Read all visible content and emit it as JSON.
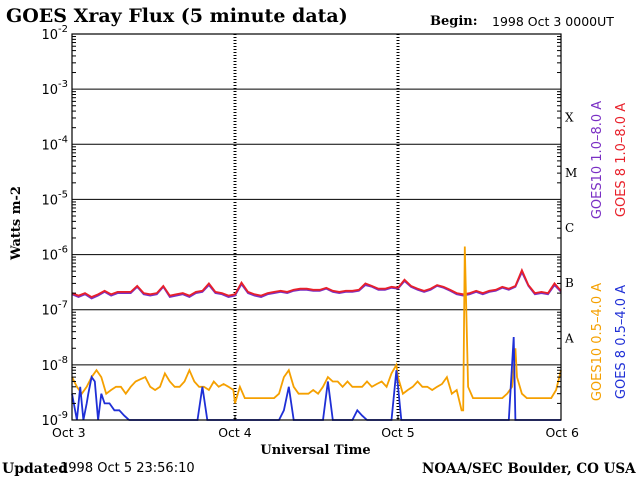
{
  "header": {
    "title": "GOES Xray Flux (5 minute data)",
    "begin_label": "Begin:",
    "begin_value": "1998 Oct 3 0000UT"
  },
  "footer": {
    "updated_label": "Updated",
    "updated_value": "1998 Oct  5 23:56:10",
    "credit": "NOAA/SEC Boulder, CO USA"
  },
  "chart_data": {
    "type": "line",
    "xlabel": "Universal Time",
    "ylabel": "Watts m-2",
    "y_scale": "log",
    "x_unit": "days since Oct 3 00:00 UT",
    "xlim": [
      0,
      3
    ],
    "ylim": [
      1e-09,
      0.01
    ],
    "x_ticks": [
      {
        "x": 0,
        "label": "Oct 3"
      },
      {
        "x": 1,
        "label": "Oct 4"
      },
      {
        "x": 2,
        "label": "Oct 5"
      },
      {
        "x": 3,
        "label": "Oct 6"
      }
    ],
    "y_ticks": [
      {
        "exp": -2,
        "base": "10",
        "sup": "-2"
      },
      {
        "exp": -3,
        "base": "10",
        "sup": "-3"
      },
      {
        "exp": -4,
        "base": "10",
        "sup": "-4"
      },
      {
        "exp": -5,
        "base": "10",
        "sup": "-5"
      },
      {
        "exp": -6,
        "base": "10",
        "sup": "-6"
      },
      {
        "exp": -7,
        "base": "10",
        "sup": "-7"
      },
      {
        "exp": -8,
        "base": "10",
        "sup": "-8"
      },
      {
        "exp": -9,
        "base": "10",
        "sup": "-9"
      }
    ],
    "flare_classes": [
      {
        "label": "X",
        "exp": -4
      },
      {
        "label": "M",
        "exp": -5
      },
      {
        "label": "C",
        "exp": -6
      },
      {
        "label": "B",
        "exp": -7
      },
      {
        "label": "A",
        "exp": -8
      }
    ],
    "legend": [
      {
        "text": "GOES10 1.0–8.0 A",
        "color": "#7a2fc4",
        "group": "long"
      },
      {
        "text": "GOES 8 1.0–8.0 A",
        "color": "#e8202a",
        "group": "long"
      },
      {
        "text": "GOES10 0.5–4.0 A",
        "color": "#f5a000",
        "group": "short"
      },
      {
        "text": "GOES 8 0.5–4.0 A",
        "color": "#1f2fd6",
        "group": "short"
      }
    ],
    "series": [
      {
        "name": "GOES10 1.0-8.0 A",
        "color": "#7a2fc4",
        "x": [
          0.0,
          0.04,
          0.08,
          0.12,
          0.16,
          0.2,
          0.24,
          0.28,
          0.32,
          0.36,
          0.4,
          0.44,
          0.48,
          0.52,
          0.56,
          0.6,
          0.64,
          0.68,
          0.72,
          0.76,
          0.8,
          0.84,
          0.88,
          0.92,
          0.96,
          1.0,
          1.04,
          1.08,
          1.12,
          1.16,
          1.2,
          1.24,
          1.28,
          1.32,
          1.36,
          1.4,
          1.44,
          1.48,
          1.52,
          1.56,
          1.6,
          1.64,
          1.68,
          1.72,
          1.76,
          1.8,
          1.84,
          1.88,
          1.92,
          1.96,
          2.0,
          2.04,
          2.08,
          2.12,
          2.16,
          2.2,
          2.24,
          2.28,
          2.32,
          2.36,
          2.4,
          2.44,
          2.48,
          2.52,
          2.56,
          2.6,
          2.64,
          2.68,
          2.72,
          2.76,
          2.8,
          2.84,
          2.88,
          2.92,
          2.96,
          3.0
        ],
        "y": [
          1.9e-07,
          1.7e-07,
          1.9e-07,
          1.6e-07,
          1.8e-07,
          2.1e-07,
          1.8e-07,
          2e-07,
          2e-07,
          2e-07,
          2.6e-07,
          1.9e-07,
          1.8e-07,
          1.9e-07,
          2.6e-07,
          1.7e-07,
          1.8e-07,
          1.9e-07,
          1.7e-07,
          2e-07,
          2.1e-07,
          2.8e-07,
          2e-07,
          1.9e-07,
          1.7e-07,
          1.8e-07,
          2.9e-07,
          2e-07,
          1.8e-07,
          1.7e-07,
          1.9e-07,
          2e-07,
          2.1e-07,
          2e-07,
          2.2e-07,
          2.3e-07,
          2.3e-07,
          2.2e-07,
          2.2e-07,
          2.4e-07,
          2.1e-07,
          2e-07,
          2.1e-07,
          2.1e-07,
          2.2e-07,
          2.8e-07,
          2.6e-07,
          2.3e-07,
          2.3e-07,
          2.5e-07,
          2.4e-07,
          3.3e-07,
          2.6e-07,
          2.3e-07,
          2.1e-07,
          2.3e-07,
          2.7e-07,
          2.5e-07,
          2.2e-07,
          1.9e-07,
          1.8e-07,
          1.9e-07,
          2.1e-07,
          1.9e-07,
          2.1e-07,
          2.2e-07,
          2.5e-07,
          2.3e-07,
          2.6e-07,
          4.8e-07,
          2.7e-07,
          1.9e-07,
          2e-07,
          1.9e-07,
          2.8e-07,
          2.1e-07
        ]
      },
      {
        "name": "GOES 8 1.0-8.0 A",
        "color": "#e8202a",
        "x": [
          0.0,
          0.04,
          0.08,
          0.12,
          0.16,
          0.2,
          0.24,
          0.28,
          0.32,
          0.36,
          0.4,
          0.44,
          0.48,
          0.52,
          0.56,
          0.6,
          0.64,
          0.68,
          0.72,
          0.76,
          0.8,
          0.84,
          0.88,
          0.92,
          0.96,
          1.0,
          1.04,
          1.08,
          1.12,
          1.16,
          1.2,
          1.24,
          1.28,
          1.32,
          1.36,
          1.4,
          1.44,
          1.48,
          1.52,
          1.56,
          1.6,
          1.64,
          1.68,
          1.72,
          1.76,
          1.8,
          1.84,
          1.88,
          1.92,
          1.96,
          2.0,
          2.04,
          2.08,
          2.12,
          2.16,
          2.2,
          2.24,
          2.28,
          2.32,
          2.36,
          2.4,
          2.44,
          2.48,
          2.52,
          2.56,
          2.6,
          2.64,
          2.68,
          2.72,
          2.76,
          2.8,
          2.84,
          2.88,
          2.92,
          2.96,
          3.0
        ],
        "y": [
          2e-07,
          1.8e-07,
          2e-07,
          1.7e-07,
          1.9e-07,
          2.2e-07,
          1.9e-07,
          2.1e-07,
          2.1e-07,
          2.1e-07,
          2.7e-07,
          2e-07,
          1.9e-07,
          2e-07,
          2.7e-07,
          1.8e-07,
          1.9e-07,
          2e-07,
          1.8e-07,
          2.1e-07,
          2.2e-07,
          3e-07,
          2.1e-07,
          2e-07,
          1.8e-07,
          1.9e-07,
          3.1e-07,
          2.1e-07,
          1.9e-07,
          1.8e-07,
          2e-07,
          2.1e-07,
          2.2e-07,
          2.1e-07,
          2.3e-07,
          2.4e-07,
          2.4e-07,
          2.3e-07,
          2.3e-07,
          2.5e-07,
          2.2e-07,
          2.1e-07,
          2.2e-07,
          2.2e-07,
          2.3e-07,
          3e-07,
          2.7e-07,
          2.4e-07,
          2.4e-07,
          2.6e-07,
          2.5e-07,
          3.5e-07,
          2.7e-07,
          2.4e-07,
          2.2e-07,
          2.4e-07,
          2.8e-07,
          2.6e-07,
          2.3e-07,
          2e-07,
          1.9e-07,
          2e-07,
          2.2e-07,
          2e-07,
          2.2e-07,
          2.3e-07,
          2.6e-07,
          2.4e-07,
          2.7e-07,
          5.2e-07,
          2.8e-07,
          2e-07,
          2.1e-07,
          2e-07,
          3e-07,
          2.2e-07
        ]
      },
      {
        "name": "GOES10 0.5-4.0 A",
        "color": "#f5a000",
        "x": [
          0.0,
          0.03,
          0.06,
          0.09,
          0.12,
          0.15,
          0.18,
          0.21,
          0.24,
          0.27,
          0.3,
          0.33,
          0.36,
          0.39,
          0.42,
          0.45,
          0.48,
          0.51,
          0.54,
          0.57,
          0.6,
          0.63,
          0.66,
          0.69,
          0.72,
          0.75,
          0.78,
          0.81,
          0.84,
          0.87,
          0.9,
          0.93,
          0.96,
          0.99,
          1.0,
          1.03,
          1.06,
          1.09,
          1.12,
          1.15,
          1.18,
          1.21,
          1.24,
          1.27,
          1.3,
          1.33,
          1.36,
          1.39,
          1.42,
          1.45,
          1.48,
          1.51,
          1.54,
          1.57,
          1.6,
          1.63,
          1.66,
          1.69,
          1.72,
          1.75,
          1.78,
          1.81,
          1.84,
          1.87,
          1.9,
          1.93,
          1.96,
          1.99,
          2.0,
          2.03,
          2.06,
          2.09,
          2.12,
          2.15,
          2.18,
          2.21,
          2.24,
          2.27,
          2.3,
          2.33,
          2.36,
          2.39,
          2.4,
          2.41,
          2.43,
          2.46,
          2.49,
          2.52,
          2.55,
          2.58,
          2.61,
          2.64,
          2.67,
          2.7,
          2.72,
          2.73,
          2.76,
          2.79,
          2.82,
          2.85,
          2.88,
          2.91,
          2.94,
          2.97,
          3.0
        ],
        "y": [
          6e-09,
          4e-09,
          3e-09,
          4e-09,
          6e-09,
          8e-09,
          6e-09,
          3e-09,
          3.5e-09,
          4e-09,
          4e-09,
          3e-09,
          4e-09,
          5e-09,
          5.5e-09,
          6e-09,
          4e-09,
          3.5e-09,
          4e-09,
          7e-09,
          5e-09,
          4e-09,
          4e-09,
          5e-09,
          8e-09,
          5e-09,
          4e-09,
          4e-09,
          3.5e-09,
          5e-09,
          4e-09,
          4.5e-09,
          4e-09,
          3.5e-09,
          2e-09,
          4e-09,
          2.5e-09,
          2.5e-09,
          2.5e-09,
          2.5e-09,
          2.5e-09,
          2.5e-09,
          2.5e-09,
          3e-09,
          6e-09,
          8e-09,
          4e-09,
          3e-09,
          3e-09,
          3e-09,
          3.5e-09,
          3e-09,
          4e-09,
          6e-09,
          5e-09,
          5e-09,
          4e-09,
          5e-09,
          4e-09,
          4e-09,
          4e-09,
          5e-09,
          4e-09,
          4.5e-09,
          5e-09,
          4e-09,
          7e-09,
          1e-08,
          6e-09,
          3e-09,
          3.5e-09,
          4e-09,
          5e-09,
          4e-09,
          4e-09,
          3.5e-09,
          4e-09,
          4.5e-09,
          6e-09,
          3e-09,
          3.5e-09,
          1.5e-09,
          1.5e-09,
          1.4e-06,
          4e-09,
          2.5e-09,
          2.5e-09,
          2.5e-09,
          2.5e-09,
          2.5e-09,
          2.5e-09,
          2.5e-09,
          3e-09,
          4e-09,
          2e-08,
          6e-09,
          3e-09,
          2.5e-09,
          2.5e-09,
          2.5e-09,
          2.5e-09,
          2.5e-09,
          2.5e-09,
          3.5e-09,
          8e-09
        ]
      },
      {
        "name": "GOES 8 0.5-4.0 A",
        "color": "#1f2fd6",
        "x": [
          0.0,
          0.03,
          0.05,
          0.07,
          0.09,
          0.1,
          0.12,
          0.14,
          0.16,
          0.18,
          0.2,
          0.23,
          0.26,
          0.29,
          0.32,
          0.35,
          0.38,
          0.41,
          0.44,
          0.47,
          0.5,
          0.53,
          0.56,
          0.59,
          0.62,
          0.65,
          0.68,
          0.71,
          0.74,
          0.77,
          0.8,
          0.83,
          0.86,
          0.89,
          0.92,
          0.95,
          0.98,
          1.0,
          1.03,
          1.06,
          1.09,
          1.12,
          1.15,
          1.18,
          1.21,
          1.24,
          1.27,
          1.3,
          1.33,
          1.36,
          1.39,
          1.42,
          1.45,
          1.48,
          1.51,
          1.54,
          1.57,
          1.6,
          1.63,
          1.66,
          1.69,
          1.72,
          1.75,
          1.78,
          1.81,
          1.84,
          1.87,
          1.9,
          1.93,
          1.96,
          1.99,
          2.02,
          2.05,
          2.08,
          2.11,
          2.14,
          2.17,
          2.2,
          2.23,
          2.26,
          2.29,
          2.32,
          2.35,
          2.38,
          2.41,
          2.44,
          2.47,
          2.5,
          2.53,
          2.56,
          2.59,
          2.62,
          2.65,
          2.68,
          2.71,
          2.72,
          2.73,
          2.75,
          2.78,
          2.81,
          2.84,
          2.87,
          2.9,
          2.93,
          2.96,
          2.99,
          3.0
        ],
        "y": [
          3e-09,
          1e-09,
          4e-09,
          1e-09,
          2e-09,
          3e-09,
          6e-09,
          5e-09,
          1e-09,
          3e-09,
          2e-09,
          2e-09,
          1.5e-09,
          1.5e-09,
          1.2e-09,
          1e-09,
          1e-09,
          1e-09,
          1e-09,
          1e-09,
          1e-09,
          1e-09,
          1e-09,
          1e-09,
          1e-09,
          1e-09,
          1e-09,
          1e-09,
          1e-09,
          1e-09,
          4e-09,
          1e-09,
          1e-09,
          1e-09,
          1e-09,
          1e-09,
          1e-09,
          1e-09,
          1e-09,
          1e-09,
          1e-09,
          1e-09,
          1e-09,
          1e-09,
          1e-09,
          1e-09,
          1e-09,
          1.5e-09,
          4e-09,
          1e-09,
          1e-09,
          1e-09,
          1e-09,
          1e-09,
          1e-09,
          1e-09,
          5e-09,
          1e-09,
          1e-09,
          1e-09,
          1e-09,
          1e-09,
          1.5e-09,
          1.2e-09,
          1e-09,
          1e-09,
          1e-09,
          1e-09,
          1e-09,
          1e-09,
          8e-09,
          1e-09,
          1e-09,
          1e-09,
          1e-09,
          1e-09,
          1e-09,
          1e-09,
          1e-09,
          1e-09,
          1e-09,
          1e-09,
          1e-09,
          1e-09,
          1e-09,
          1e-09,
          1e-09,
          1e-09,
          1e-09,
          1e-09,
          1e-09,
          1e-09,
          1e-09,
          1e-09,
          3.2e-08,
          1e-09,
          1e-09,
          1e-09,
          1e-09,
          1e-09,
          1e-09,
          1e-09,
          1e-09,
          1e-09,
          1e-09,
          1e-09,
          1e-09
        ]
      }
    ]
  }
}
